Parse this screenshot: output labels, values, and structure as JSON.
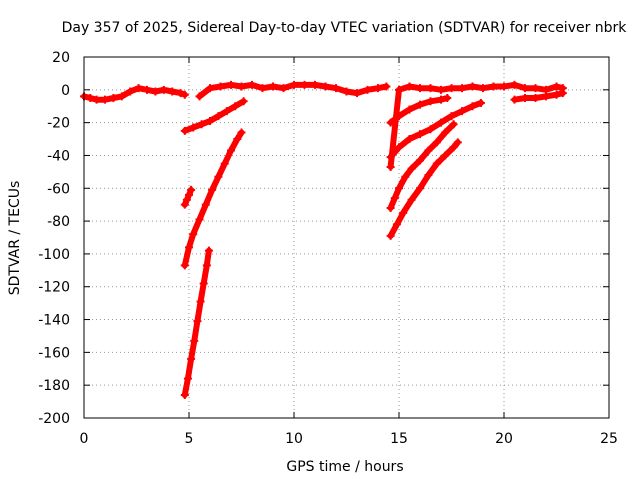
{
  "chart_data": {
    "type": "scatter",
    "title": "Day 357 of 2025, Sidereal Day-to-day VTEC variation (SDTVAR) for receiver nbrk",
    "xlabel": "GPS time / hours",
    "ylabel": "SDTVAR / TECUs",
    "xlim": [
      0,
      25
    ],
    "ylim": [
      -200,
      20
    ],
    "xticks": [
      0,
      5,
      10,
      15,
      20,
      25
    ],
    "yticks": [
      20,
      0,
      -20,
      -40,
      -60,
      -80,
      -100,
      -120,
      -140,
      -160,
      -180,
      -200
    ],
    "grid": true,
    "marker": "+",
    "color": "#ff0000",
    "series": [
      {
        "x": [
          0.0,
          0.3,
          0.6,
          1.0,
          1.4,
          1.8,
          2.2,
          2.6,
          3.0,
          3.4,
          3.8,
          4.2,
          4.6,
          4.8
        ],
        "y": [
          -4,
          -5,
          -6,
          -6,
          -5,
          -4,
          -1,
          1,
          0,
          -1,
          0,
          -1,
          -2,
          -3
        ]
      },
      {
        "x": [
          5.5,
          6.0,
          6.5,
          7.0,
          7.5,
          8.0,
          8.5,
          9.0,
          9.5,
          10.0,
          10.5,
          11.0,
          11.5,
          12.0,
          12.5,
          13.0,
          13.5,
          14.0,
          14.4
        ],
        "y": [
          -4,
          1,
          2,
          3,
          2,
          3,
          1,
          2,
          1,
          3,
          3,
          3,
          2,
          1,
          -1,
          -2,
          0,
          1,
          2
        ]
      },
      {
        "x": [
          4.8,
          5.2,
          5.6,
          6.0,
          6.4,
          6.8,
          7.2,
          7.6
        ],
        "y": [
          -25,
          -23,
          -21,
          -19,
          -16,
          -13,
          -10,
          -7
        ]
      },
      {
        "x": [
          4.8,
          4.9,
          5.0,
          5.1
        ],
        "y": [
          -70,
          -67,
          -64,
          -61
        ]
      },
      {
        "x": [
          4.8,
          5.0,
          5.2,
          5.5,
          5.8,
          6.1,
          6.4,
          6.7,
          7.0,
          7.3,
          7.5
        ],
        "y": [
          -107,
          -96,
          -88,
          -79,
          -70,
          -61,
          -53,
          -45,
          -37,
          -30,
          -26
        ]
      },
      {
        "x": [
          4.8,
          4.95,
          5.1,
          5.25,
          5.4,
          5.55,
          5.7,
          5.85,
          5.95
        ],
        "y": [
          -186,
          -176,
          -164,
          -153,
          -141,
          -129,
          -118,
          -107,
          -98
        ]
      },
      {
        "x": [
          14.6,
          15.0,
          15.5,
          16.0,
          16.5,
          17.0,
          17.5,
          18.0,
          18.5,
          19.0,
          19.5,
          20.0,
          20.5,
          21.0,
          21.5,
          22.0,
          22.5,
          22.8
        ],
        "y": [
          -47,
          0,
          2,
          1,
          1,
          0,
          1,
          1,
          2,
          1,
          2,
          2,
          3,
          1,
          1,
          0,
          2,
          1
        ]
      },
      {
        "x": [
          20.5,
          21.0,
          21.5,
          22.0,
          22.5,
          22.8
        ],
        "y": [
          -6,
          -5,
          -5,
          -4,
          -3,
          -2
        ]
      },
      {
        "x": [
          14.6,
          15.0,
          15.5,
          16.0,
          16.5,
          17.0,
          17.3
        ],
        "y": [
          -20,
          -16,
          -12,
          -9,
          -7,
          -6,
          -5
        ]
      },
      {
        "x": [
          14.6,
          15.0,
          15.5,
          16.0,
          16.5,
          17.0,
          17.5,
          18.0,
          18.5,
          18.9
        ],
        "y": [
          -41,
          -35,
          -30,
          -27,
          -24,
          -20,
          -16,
          -13,
          -10,
          -8
        ]
      },
      {
        "x": [
          14.6,
          14.8,
          15.0,
          15.3,
          15.6,
          16.0,
          16.4,
          16.8,
          17.2,
          17.6
        ],
        "y": [
          -72,
          -66,
          -60,
          -53,
          -48,
          -43,
          -37,
          -32,
          -26,
          -21
        ]
      },
      {
        "x": [
          14.6,
          14.9,
          15.2,
          15.6,
          16.0,
          16.4,
          16.8,
          17.2,
          17.6,
          17.8
        ],
        "y": [
          -89,
          -82,
          -75,
          -67,
          -60,
          -52,
          -45,
          -40,
          -35,
          -32
        ]
      }
    ]
  }
}
